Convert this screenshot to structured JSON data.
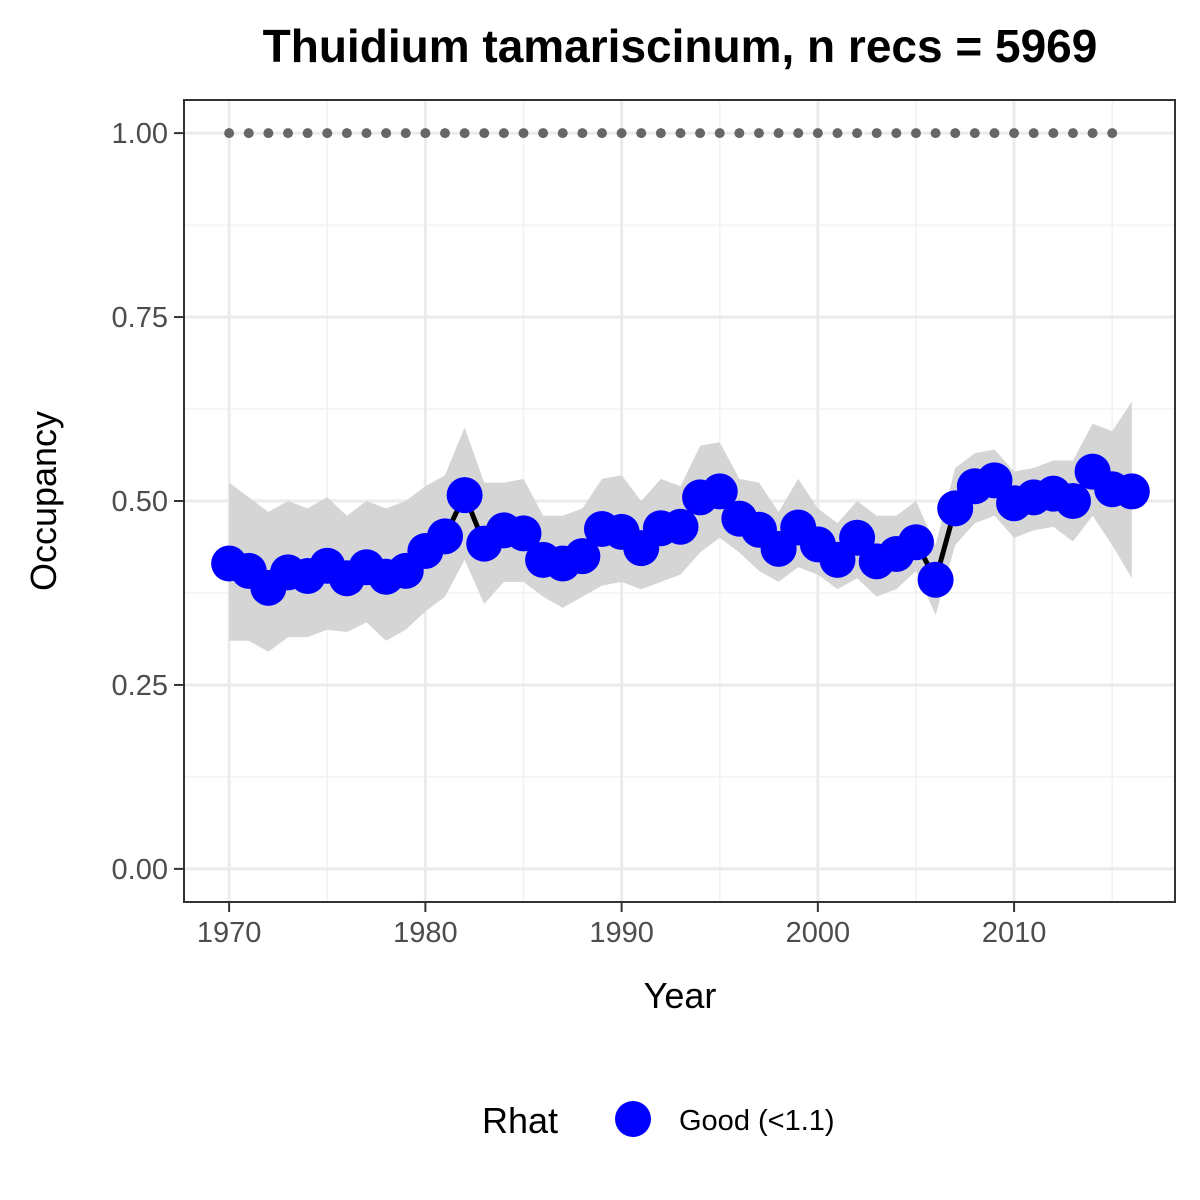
{
  "chart_data": {
    "type": "line",
    "title": "Thuidium tamariscinum, n recs = 5969",
    "xlabel": "Year",
    "ylabel": "Occupancy",
    "xlim": [
      1967.7,
      2018.2
    ],
    "ylim": [
      -0.045,
      1.045
    ],
    "x_ticks": [
      1970,
      1980,
      1990,
      2000,
      2010
    ],
    "x_tick_labels": [
      "1970",
      "1980",
      "1990",
      "2000",
      "2010"
    ],
    "y_ticks": [
      0,
      0.25,
      0.5,
      0.75,
      1.0
    ],
    "y_tick_labels": [
      "0.00",
      "0.25",
      "0.50",
      "0.75",
      "1.00"
    ],
    "grid": true,
    "legend": {
      "title": "Rhat",
      "position": "bottom",
      "entries": [
        {
          "label": "Good (<1.1)",
          "color": "#0000ff"
        }
      ]
    },
    "colors": {
      "points": "#0000ff",
      "line": "#000000",
      "ribbon": "#d3d3d3",
      "reference": "#666666"
    },
    "x": [
      1970,
      1971,
      1972,
      1973,
      1974,
      1975,
      1976,
      1977,
      1978,
      1979,
      1980,
      1981,
      1982,
      1983,
      1984,
      1985,
      1986,
      1987,
      1988,
      1989,
      1990,
      1991,
      1992,
      1993,
      1994,
      1995,
      1996,
      1997,
      1998,
      1999,
      2000,
      2001,
      2002,
      2003,
      2004,
      2005,
      2006,
      2007,
      2008,
      2009,
      2010,
      2011,
      2012,
      2013,
      2014,
      2015,
      2016
    ],
    "series": [
      {
        "values": [
          0.415,
          0.405,
          0.382,
          0.403,
          0.398,
          0.412,
          0.395,
          0.41,
          0.397,
          0.405,
          0.432,
          0.452,
          0.508,
          0.442,
          0.46,
          0.456,
          0.42,
          0.415,
          0.425,
          0.462,
          0.458,
          0.436,
          0.463,
          0.465,
          0.505,
          0.513,
          0.476,
          0.461,
          0.435,
          0.464,
          0.441,
          0.42,
          0.45,
          0.418,
          0.428,
          0.444,
          0.393,
          0.49,
          0.52,
          0.528,
          0.497,
          0.505,
          0.51,
          0.5,
          0.54,
          0.516,
          0.513
        ],
        "lower": [
          0.31,
          0.31,
          0.295,
          0.315,
          0.315,
          0.325,
          0.322,
          0.335,
          0.31,
          0.325,
          0.35,
          0.37,
          0.42,
          0.36,
          0.39,
          0.39,
          0.37,
          0.355,
          0.37,
          0.385,
          0.39,
          0.38,
          0.39,
          0.4,
          0.43,
          0.45,
          0.43,
          0.405,
          0.39,
          0.41,
          0.4,
          0.38,
          0.395,
          0.37,
          0.38,
          0.405,
          0.345,
          0.44,
          0.47,
          0.48,
          0.45,
          0.46,
          0.465,
          0.445,
          0.48,
          0.44,
          0.395
        ],
        "upper": [
          0.525,
          0.505,
          0.485,
          0.5,
          0.49,
          0.505,
          0.48,
          0.5,
          0.49,
          0.5,
          0.52,
          0.535,
          0.6,
          0.525,
          0.525,
          0.53,
          0.48,
          0.48,
          0.49,
          0.53,
          0.535,
          0.5,
          0.53,
          0.52,
          0.575,
          0.58,
          0.53,
          0.525,
          0.485,
          0.53,
          0.49,
          0.47,
          0.5,
          0.48,
          0.48,
          0.5,
          0.44,
          0.545,
          0.565,
          0.57,
          0.54,
          0.545,
          0.555,
          0.555,
          0.605,
          0.595,
          0.635
        ]
      },
      {
        "x": [
          1970,
          1971,
          1972,
          1973,
          1974,
          1975,
          1976,
          1977,
          1978,
          1979,
          1980,
          1981,
          1982,
          1983,
          1984,
          1985,
          1986,
          1987,
          1988,
          1989,
          1990,
          1991,
          1992,
          1993,
          1994,
          1995,
          1996,
          1997,
          1998,
          1999,
          2000,
          2001,
          2002,
          2003,
          2004,
          2005,
          2006,
          2007,
          2008,
          2009,
          2010,
          2011,
          2012,
          2013,
          2014,
          2015
        ],
        "values": [
          1,
          1,
          1,
          1,
          1,
          1,
          1,
          1,
          1,
          1,
          1,
          1,
          1,
          1,
          1,
          1,
          1,
          1,
          1,
          1,
          1,
          1,
          1,
          1,
          1,
          1,
          1,
          1,
          1,
          1,
          1,
          1,
          1,
          1,
          1,
          1,
          1,
          1,
          1,
          1,
          1,
          1,
          1,
          1,
          1,
          1
        ]
      }
    ]
  }
}
